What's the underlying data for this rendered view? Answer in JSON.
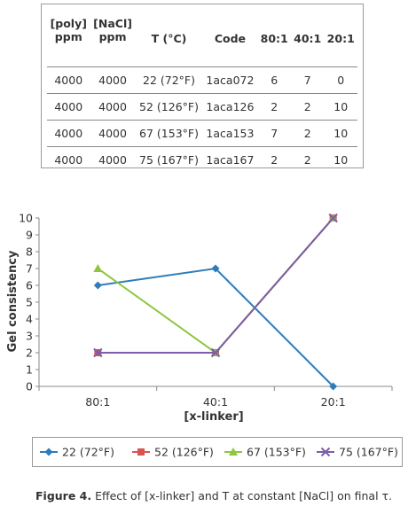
{
  "table": {
    "headers": [
      {
        "line1": "[poly]",
        "line2": "ppm"
      },
      {
        "line1": "[NaCl]",
        "line2": "ppm"
      },
      {
        "line1": "T (°C)",
        "line2": ""
      },
      {
        "line1": "Code",
        "line2": ""
      },
      {
        "line1": "80:1",
        "line2": ""
      },
      {
        "line1": "40:1",
        "line2": ""
      },
      {
        "line1": "20:1",
        "line2": ""
      }
    ],
    "rows": [
      [
        "4000",
        "4000",
        "22 (72°F)",
        "1aca072",
        "6",
        "7",
        "0"
      ],
      [
        "4000",
        "4000",
        "52 (126°F)",
        "1aca126",
        "2",
        "2",
        "10"
      ],
      [
        "4000",
        "4000",
        "67 (153°F)",
        "1aca153",
        "7",
        "2",
        "10"
      ],
      [
        "4000",
        "4000",
        "75 (167°F)",
        "1aca167",
        "2",
        "2",
        "10"
      ]
    ]
  },
  "chart_data": {
    "type": "line",
    "categories": [
      "80:1",
      "40:1",
      "20:1"
    ],
    "xlabel": "[x-linker]",
    "ylabel": "Gel consistency",
    "ylim": [
      0,
      10
    ],
    "yticks": [
      "0",
      "1",
      "2",
      "3",
      "4",
      "5",
      "6",
      "7",
      "8",
      "9",
      "10"
    ],
    "grid": false,
    "legend_position": "bottom",
    "series": [
      {
        "name": "22 (72°F)",
        "values": [
          6,
          7,
          0
        ],
        "color": "#2e7cb8",
        "marker": "diamond"
      },
      {
        "name": "52 (126°F)",
        "values": [
          2,
          2,
          10
        ],
        "color": "#d9534f",
        "marker": "square"
      },
      {
        "name": "67 (153°F)",
        "values": [
          7,
          2,
          10
        ],
        "color": "#8dc63f",
        "marker": "triangle"
      },
      {
        "name": "75 (167°F)",
        "values": [
          2,
          2,
          10
        ],
        "color": "#7b5ea7",
        "marker": "cross"
      }
    ]
  },
  "caption": {
    "label": "Figure 4.",
    "text": " Effect of [x-linker] and T at constant [NaCl] on final τ."
  }
}
